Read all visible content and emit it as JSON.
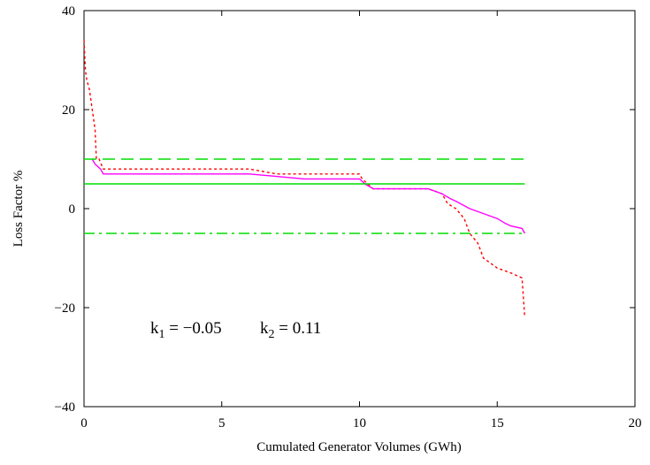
{
  "chart_data": {
    "type": "line",
    "title": "",
    "xlabel": "Cumulated Generator Volumes (GWh)",
    "ylabel": "Loss Factor %",
    "xlim": [
      0,
      20
    ],
    "ylim": [
      -40,
      40
    ],
    "xticks": [
      0,
      5,
      10,
      15,
      20
    ],
    "yticks": [
      40,
      20,
      0,
      -20,
      -40
    ],
    "xtick_labels": [
      "0",
      "5",
      "10",
      "15",
      "20"
    ],
    "ytick_labels": [
      "40",
      "20",
      "0",
      "−20",
      "−40"
    ],
    "grid": false,
    "annotation": {
      "k1_base": "k",
      "k1_sub": "1",
      "k1_rest": " = −0.05",
      "k2_base": "k",
      "k2_sub": "2",
      "k2_rest": " = 0.11"
    },
    "series": [
      {
        "style": "dotted",
        "color": "#ff0000",
        "points": [
          [
            0,
            34
          ],
          [
            0.05,
            28
          ],
          [
            0.1,
            26
          ],
          [
            0.2,
            24
          ],
          [
            0.3,
            20
          ],
          [
            0.4,
            16
          ],
          [
            0.45,
            10
          ],
          [
            0.55,
            10
          ],
          [
            0.7,
            8
          ],
          [
            1,
            8
          ],
          [
            3,
            8
          ],
          [
            5,
            8
          ],
          [
            6,
            8
          ],
          [
            6.5,
            7.5
          ],
          [
            7,
            7
          ],
          [
            8,
            7
          ],
          [
            9,
            7
          ],
          [
            10,
            7
          ],
          [
            10.1,
            6
          ],
          [
            10.5,
            4
          ],
          [
            11,
            4
          ],
          [
            12,
            4
          ],
          [
            12.5,
            4
          ],
          [
            13,
            3
          ],
          [
            13.2,
            1
          ],
          [
            13.5,
            0
          ],
          [
            13.8,
            -2
          ],
          [
            14,
            -5
          ],
          [
            14.3,
            -7
          ],
          [
            14.5,
            -10
          ],
          [
            15,
            -12
          ],
          [
            15.5,
            -13
          ],
          [
            15.9,
            -14
          ],
          [
            16,
            -22
          ]
        ]
      },
      {
        "style": "solid",
        "color": "#ff00ff",
        "points": [
          [
            0.3,
            10
          ],
          [
            0.4,
            9
          ],
          [
            0.6,
            8
          ],
          [
            0.7,
            7
          ],
          [
            1,
            7
          ],
          [
            2,
            7
          ],
          [
            4,
            7
          ],
          [
            6,
            7
          ],
          [
            7,
            6.5
          ],
          [
            8,
            6
          ],
          [
            9,
            6
          ],
          [
            10,
            6
          ],
          [
            10.2,
            5
          ],
          [
            10.5,
            4
          ],
          [
            11,
            4
          ],
          [
            12,
            4
          ],
          [
            12.5,
            4
          ],
          [
            13,
            3
          ],
          [
            13.3,
            2
          ],
          [
            13.5,
            1.5
          ],
          [
            14,
            0
          ],
          [
            14.5,
            -1
          ],
          [
            15,
            -2
          ],
          [
            15.3,
            -3
          ],
          [
            15.5,
            -3.5
          ],
          [
            15.9,
            -4
          ],
          [
            16,
            -5
          ]
        ]
      },
      {
        "style": "dashed",
        "color": "#00dd00",
        "points": [
          [
            0,
            10
          ],
          [
            16,
            10
          ]
        ]
      },
      {
        "style": "solid",
        "color": "#00dd00",
        "points": [
          [
            0,
            5
          ],
          [
            16,
            5
          ]
        ]
      },
      {
        "style": "dashdot",
        "color": "#00dd00",
        "points": [
          [
            0,
            -5
          ],
          [
            16,
            -5
          ]
        ]
      }
    ]
  }
}
